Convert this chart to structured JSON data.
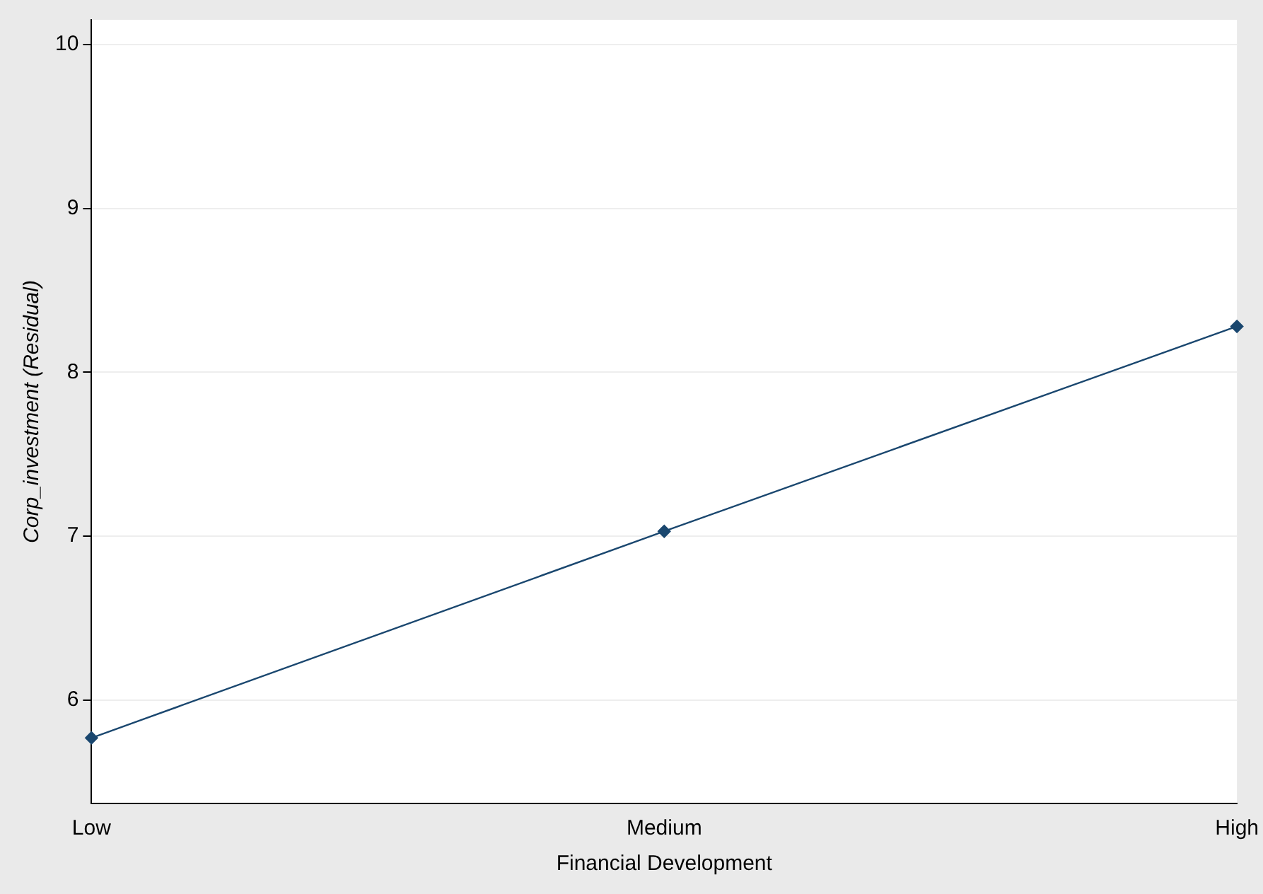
{
  "chart_data": {
    "type": "line",
    "xlabel": "Financial Development",
    "ylabel": "Corp_investment (Residual)",
    "categories": [
      "Low",
      "Medium",
      "High"
    ],
    "series": [
      {
        "color": "#1a476f",
        "values": [
          5.77,
          7.03,
          8.28
        ]
      }
    ],
    "ylim": [
      5.37,
      10.15
    ],
    "yticks": [
      6,
      7,
      8,
      9,
      10
    ],
    "grid": "y",
    "legend": false,
    "marker": "diamond",
    "line_style": "solid"
  }
}
